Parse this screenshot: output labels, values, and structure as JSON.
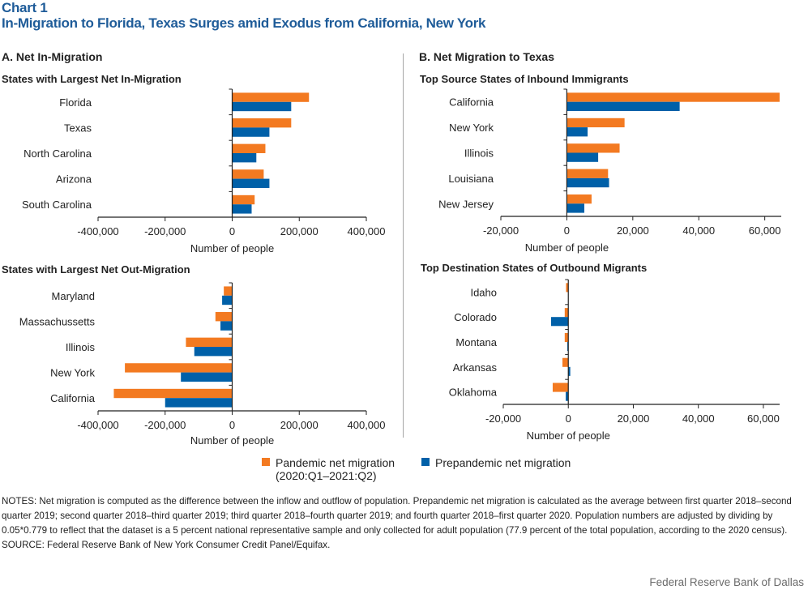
{
  "header": {
    "chart_number": "Chart 1",
    "title": "In-Migration to Florida, Texas Surges amid Exodus from California, New York"
  },
  "panels": {
    "a_title": "A. Net In-Migration",
    "b_title": "B. Net Migration to Texas"
  },
  "colors": {
    "pandemic": "#f37a21",
    "prepandemic": "#0060a8",
    "title": "#1f5c99"
  },
  "legend": {
    "pandemic_line1": "Pandemic net migration",
    "pandemic_line2": "(2020:Q1–2021:Q2)",
    "prepandemic": "Prepandemic net migration"
  },
  "notes": {
    "notes_text": "NOTES: Net migration is computed as the difference  between the inflow and outflow of population. Prepandemic net migration is calculated as the average  between first quarter 2018–second  quarter 2019; second quarter 2018–third quarter 2019; third quarter 2018–fourth  quarter 2019; and fourth quarter 2018–first  quarter 2020. Population numbers are adjusted by dividing  by 0.05*0.779 to reflect that the dataset is a 5 percent national representative  sample and only collected for adult population (77.9 percent of the total population, according to the 2020 census).",
    "source_text": "SOURCE: Federal Reserve  Bank of New York Consumer Credit Panel/Equifax."
  },
  "credit": "Federal Reserve Bank of Dallas",
  "chart_data": [
    {
      "id": "a-in",
      "type": "bar",
      "orientation": "horizontal",
      "title": "States with Largest Net In-Migration",
      "xlabel": "Number of people",
      "xlim": [
        -400000,
        400000
      ],
      "xticks": [
        -400000,
        -200000,
        0,
        200000,
        400000
      ],
      "xtick_labels": [
        "-400,000",
        "-200,000",
        "0",
        "200,000",
        "400,000"
      ],
      "categories": [
        "Florida",
        "Texas",
        "North Carolina",
        "Arizona",
        "South Carolina"
      ],
      "series": [
        {
          "name": "Pandemic net migration (2020:Q1–2021:Q2)",
          "values": [
            229000,
            176000,
            99000,
            94000,
            67000
          ]
        },
        {
          "name": "Prepandemic net migration",
          "values": [
            176000,
            111000,
            72000,
            111000,
            58000
          ]
        }
      ]
    },
    {
      "id": "a-out",
      "type": "bar",
      "orientation": "horizontal",
      "title": "States with Largest Net Out-Migration",
      "xlabel": "Number of people",
      "xlim": [
        -400000,
        400000
      ],
      "xticks": [
        -400000,
        -200000,
        0,
        200000,
        400000
      ],
      "xtick_labels": [
        "-400,000",
        "-200,000",
        "0",
        "200,000",
        "400,000"
      ],
      "categories": [
        "Maryland",
        "Massachussetts",
        "Illinois",
        "New York",
        "California"
      ],
      "series": [
        {
          "name": "Pandemic net migration (2020:Q1–2021:Q2)",
          "values": [
            -25000,
            -50000,
            -138000,
            -320000,
            -353000
          ]
        },
        {
          "name": "Prepandemic net migration",
          "values": [
            -30000,
            -35000,
            -113000,
            -153000,
            -200000
          ]
        }
      ]
    },
    {
      "id": "b-in",
      "type": "bar",
      "orientation": "horizontal",
      "title": "Top Source States of Inbound Immigrants",
      "xlabel": "Number of people",
      "xlim": [
        -20000,
        65000
      ],
      "xticks": [
        -20000,
        0,
        20000,
        40000,
        60000
      ],
      "xtick_labels": [
        "-20,000",
        "0",
        "20,000",
        "40,000",
        "60,000"
      ],
      "categories": [
        "California",
        "New York",
        "Illinois",
        "Louisiana",
        "New Jersey"
      ],
      "series": [
        {
          "name": "Pandemic net migration (2020:Q1–2021:Q2)",
          "values": [
            64500,
            17500,
            16000,
            12500,
            7500
          ]
        },
        {
          "name": "Prepandemic net migration",
          "values": [
            34200,
            6300,
            9500,
            12800,
            5300
          ]
        }
      ]
    },
    {
      "id": "b-out",
      "type": "bar",
      "orientation": "horizontal",
      "title": "Top Destination States of Outbound Migrants",
      "xlabel": "Number of people",
      "xlim": [
        -20000,
        65000
      ],
      "xticks": [
        -20000,
        0,
        20000,
        40000,
        60000
      ],
      "xtick_labels": [
        "-20,000",
        "0",
        "20,000",
        "40,000",
        "60,000"
      ],
      "categories": [
        "Idaho",
        "Colorado",
        "Montana",
        "Arkansas",
        "Oklahoma"
      ],
      "series": [
        {
          "name": "Pandemic net migration (2020:Q1–2021:Q2)",
          "values": [
            -700,
            -1100,
            -1100,
            -1800,
            -4800
          ]
        },
        {
          "name": "Prepandemic net migration",
          "values": [
            0,
            -5300,
            -300,
            600,
            -800
          ]
        }
      ]
    }
  ]
}
